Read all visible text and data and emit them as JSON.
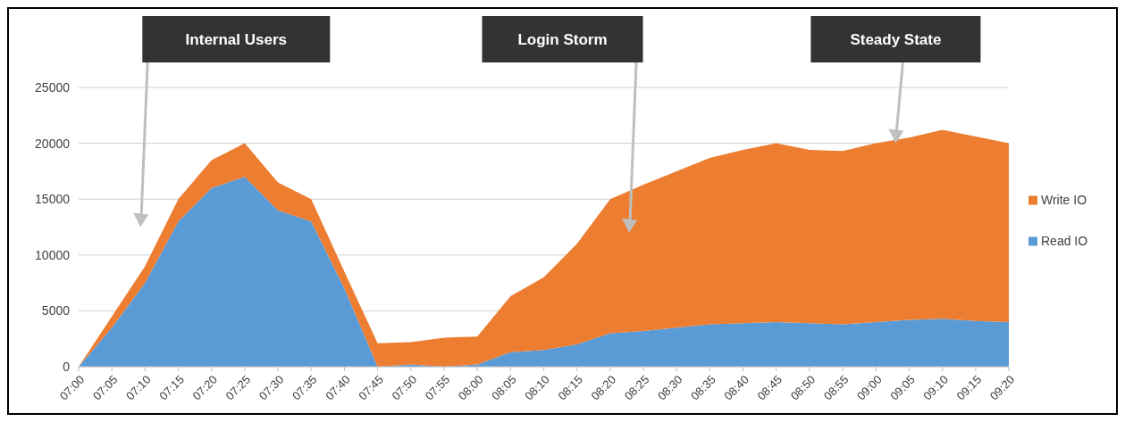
{
  "chart_data": {
    "type": "area",
    "stacked": true,
    "categories": [
      "07:00",
      "07:05",
      "07:10",
      "07:15",
      "07:20",
      "07:25",
      "07:30",
      "07:35",
      "07:40",
      "07:45",
      "07:50",
      "07:55",
      "08:00",
      "08:05",
      "08:10",
      "08:15",
      "08:20",
      "08:25",
      "08:30",
      "08:35",
      "08:40",
      "08:45",
      "08:50",
      "08:55",
      "09:00",
      "09:05",
      "09:10",
      "09:15",
      "09:20"
    ],
    "series": [
      {
        "name": "Read IO",
        "color": "#5b9bd5",
        "values": [
          0,
          3500,
          7500,
          13000,
          16000,
          17000,
          14000,
          13000,
          7000,
          0,
          200,
          0,
          200,
          1300,
          1500,
          2000,
          3000,
          3200,
          3500,
          3800,
          3900,
          4000,
          3900,
          3800,
          4000,
          4200,
          4300,
          4100,
          4000
        ]
      },
      {
        "name": "Write IO",
        "color": "#ed7d31",
        "values": [
          0,
          1000,
          1500,
          2000,
          2500,
          3000,
          2500,
          2000,
          1500,
          2100,
          2000,
          2600,
          2500,
          5000,
          6500,
          9000,
          12000,
          13100,
          14000,
          14900,
          15500,
          16000,
          15500,
          15500,
          16000,
          16300,
          16900,
          16500,
          16000
        ]
      }
    ],
    "ylim": [
      0,
      25000
    ],
    "yticks": [
      0,
      5000,
      10000,
      15000,
      20000,
      25000
    ],
    "grid": "y",
    "legend": "right",
    "annotations": [
      "Internal Users",
      "Login Storm",
      "Steady State"
    ]
  }
}
